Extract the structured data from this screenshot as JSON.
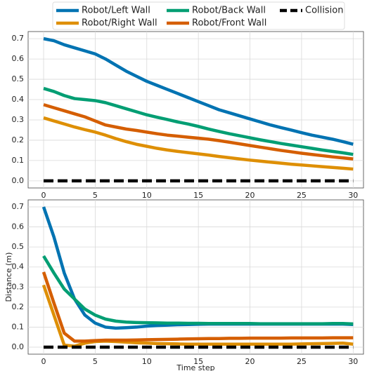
{
  "chart_data": [
    {
      "type": "line",
      "x": [
        0,
        1,
        2,
        3,
        4,
        5,
        6,
        7,
        8,
        9,
        10,
        11,
        12,
        13,
        14,
        15,
        16,
        17,
        18,
        19,
        20,
        21,
        22,
        23,
        24,
        25,
        26,
        27,
        28,
        29,
        30
      ],
      "xlim": [
        -1.5,
        31
      ],
      "xticks": [
        0,
        5,
        10,
        15,
        20,
        25,
        30
      ],
      "ylim": [
        -0.035,
        0.735
      ],
      "yticks": [
        {
          "value": 0,
          "label": "0.0"
        },
        0.1,
        0.2,
        0.3,
        0.4,
        0.5,
        0.6,
        0.7
      ],
      "grid": true,
      "series": [
        {
          "name": "Robot/Left Wall",
          "color": "#0173b2",
          "values": [
            0.7,
            0.69,
            0.67,
            0.655,
            0.64,
            0.625,
            0.6,
            0.57,
            0.54,
            0.515,
            0.49,
            0.47,
            0.45,
            0.43,
            0.41,
            0.39,
            0.37,
            0.35,
            0.335,
            0.32,
            0.305,
            0.29,
            0.275,
            0.262,
            0.25,
            0.237,
            0.225,
            0.215,
            0.205,
            0.193,
            0.18
          ]
        },
        {
          "name": "Robot/Right Wall",
          "color": "#de8f05",
          "values": [
            0.31,
            0.295,
            0.28,
            0.265,
            0.252,
            0.24,
            0.225,
            0.208,
            0.193,
            0.18,
            0.17,
            0.16,
            0.152,
            0.145,
            0.139,
            0.133,
            0.127,
            0.12,
            0.114,
            0.108,
            0.102,
            0.097,
            0.092,
            0.087,
            0.082,
            0.078,
            0.074,
            0.07,
            0.066,
            0.062,
            0.058
          ]
        },
        {
          "name": "Robot/Back Wall",
          "color": "#029e73",
          "values": [
            0.455,
            0.44,
            0.42,
            0.405,
            0.4,
            0.395,
            0.385,
            0.37,
            0.355,
            0.34,
            0.325,
            0.313,
            0.302,
            0.29,
            0.28,
            0.268,
            0.255,
            0.243,
            0.232,
            0.222,
            0.212,
            0.202,
            0.193,
            0.184,
            0.176,
            0.168,
            0.16,
            0.152,
            0.145,
            0.138,
            0.13
          ]
        },
        {
          "name": "Robot/Front Wall",
          "color": "#d55e00",
          "values": [
            0.375,
            0.36,
            0.345,
            0.33,
            0.315,
            0.295,
            0.275,
            0.265,
            0.255,
            0.248,
            0.24,
            0.232,
            0.225,
            0.22,
            0.215,
            0.21,
            0.205,
            0.198,
            0.19,
            0.182,
            0.174,
            0.166,
            0.158,
            0.15,
            0.143,
            0.136,
            0.13,
            0.124,
            0.118,
            0.113,
            0.108
          ]
        },
        {
          "name": "Collision",
          "color": "#000000",
          "linestyle": "dashed",
          "values": [
            0,
            0,
            0,
            0,
            0,
            0,
            0,
            0,
            0,
            0,
            0,
            0,
            0,
            0,
            0,
            0,
            0,
            0,
            0,
            0,
            0,
            0,
            0,
            0,
            0,
            0,
            0,
            0,
            0,
            0,
            0
          ]
        }
      ]
    },
    {
      "type": "line",
      "x_label": "Time step",
      "y_label": "Distance (m)",
      "x": [
        0,
        1,
        2,
        3,
        4,
        5,
        6,
        7,
        8,
        9,
        10,
        11,
        12,
        13,
        14,
        15,
        16,
        17,
        18,
        19,
        20,
        21,
        22,
        23,
        24,
        25,
        26,
        27,
        28,
        29,
        30
      ],
      "xlim": [
        -1.5,
        31
      ],
      "xticks": [
        0,
        5,
        10,
        15,
        20,
        25,
        30
      ],
      "ylim": [
        -0.035,
        0.735
      ],
      "yticks": [
        {
          "value": 0,
          "label": "0.0"
        },
        0.1,
        0.2,
        0.3,
        0.4,
        0.5,
        0.6,
        0.7
      ],
      "grid": true,
      "series": [
        {
          "color": "#0173b2",
          "values": [
            0.7,
            0.55,
            0.37,
            0.24,
            0.16,
            0.12,
            0.1,
            0.095,
            0.097,
            0.1,
            0.105,
            0.108,
            0.11,
            0.112,
            0.113,
            0.114,
            0.115,
            0.115,
            0.115,
            0.115,
            0.115,
            0.115,
            0.115,
            0.115,
            0.115,
            0.115,
            0.115,
            0.115,
            0.115,
            0.115,
            0.113
          ]
        },
        {
          "color": "#de8f05",
          "values": [
            0.31,
            0.16,
            0.01,
            0.005,
            0.02,
            0.028,
            0.03,
            0.028,
            0.025,
            0.022,
            0.02,
            0.018,
            0.017,
            0.016,
            0.015,
            0.015,
            0.015,
            0.015,
            0.015,
            0.015,
            0.015,
            0.015,
            0.015,
            0.015,
            0.015,
            0.016,
            0.017,
            0.018,
            0.019,
            0.02,
            0.015
          ]
        },
        {
          "color": "#029e73",
          "values": [
            0.455,
            0.37,
            0.29,
            0.24,
            0.19,
            0.16,
            0.14,
            0.13,
            0.125,
            0.123,
            0.122,
            0.121,
            0.12,
            0.12,
            0.119,
            0.119,
            0.118,
            0.118,
            0.118,
            0.118,
            0.118,
            0.117,
            0.117,
            0.117,
            0.117,
            0.117,
            0.117,
            0.117,
            0.118,
            0.118,
            0.116
          ]
        },
        {
          "color": "#d55e00",
          "values": [
            0.375,
            0.22,
            0.07,
            0.03,
            0.03,
            0.033,
            0.035,
            0.035,
            0.035,
            0.036,
            0.037,
            0.038,
            0.039,
            0.04,
            0.041,
            0.042,
            0.043,
            0.043,
            0.044,
            0.044,
            0.045,
            0.045,
            0.045,
            0.045,
            0.046,
            0.046,
            0.046,
            0.046,
            0.047,
            0.047,
            0.047
          ]
        },
        {
          "color": "#000000",
          "linestyle": "dashed",
          "values": [
            0,
            0,
            0,
            0,
            0,
            0,
            0,
            0,
            0,
            0,
            0,
            0,
            0,
            0,
            0,
            0,
            0,
            0,
            0,
            0,
            0,
            0,
            0,
            0,
            0,
            0,
            0,
            0,
            0,
            0,
            0
          ]
        }
      ]
    }
  ]
}
